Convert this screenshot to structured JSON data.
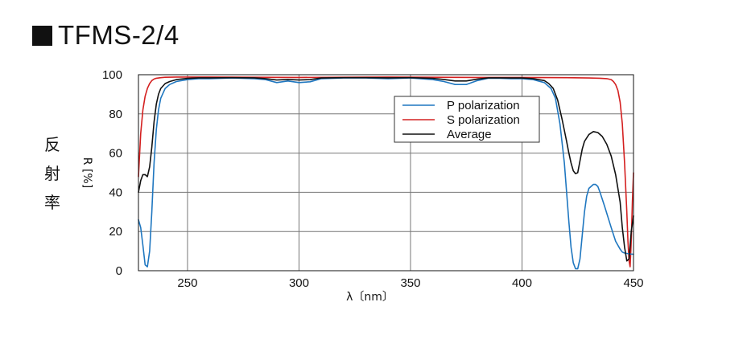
{
  "page": {
    "title": "TFMS-2/4",
    "side_label": [
      "反",
      "射",
      "率"
    ]
  },
  "chart_data": {
    "type": "line",
    "xlabel": "λ〔nm〕",
    "ylabel": "R [%]",
    "xlim": [
      228,
      450
    ],
    "ylim": [
      0,
      100
    ],
    "xticks": [
      250,
      300,
      350,
      400,
      450
    ],
    "yticks": [
      0,
      20,
      40,
      60,
      80,
      100
    ],
    "grid": true,
    "legend_position": "top-right",
    "series": [
      {
        "name": "P polarization",
        "color": "#1f77c0",
        "x": [
          228,
          229,
          230,
          231,
          232,
          233,
          234,
          235,
          236,
          237,
          238,
          240,
          242,
          245,
          250,
          255,
          260,
          270,
          280,
          285,
          290,
          295,
          300,
          305,
          310,
          320,
          330,
          340,
          350,
          360,
          365,
          370,
          375,
          380,
          385,
          390,
          395,
          400,
          405,
          410,
          413,
          415,
          417,
          419,
          420,
          421,
          422,
          423,
          424,
          425,
          426,
          427,
          428,
          429,
          430,
          432,
          433,
          434,
          435,
          437,
          440,
          442,
          444,
          445,
          446,
          447,
          448,
          449,
          450
        ],
        "y": [
          26,
          22,
          13,
          3,
          2,
          10,
          30,
          55,
          72,
          82,
          88,
          93,
          95,
          96.5,
          97.5,
          98,
          98,
          98.3,
          98,
          97.5,
          96,
          96.8,
          96,
          96.4,
          98,
          98.3,
          98.3,
          98,
          98.3,
          97.5,
          96.5,
          95,
          95,
          97,
          98.2,
          98.2,
          98,
          98,
          97.5,
          96,
          93,
          88,
          75,
          55,
          40,
          25,
          12,
          4,
          1,
          1,
          6,
          18,
          30,
          38,
          42,
          44,
          44,
          43,
          40,
          33,
          22,
          15,
          11,
          9.5,
          9,
          8.8,
          8.6,
          8.5,
          8.4
        ]
      },
      {
        "name": "S polarization",
        "color": "#d42020",
        "x": [
          228,
          229,
          230,
          231,
          232,
          233,
          234,
          235,
          236,
          238,
          240,
          245,
          250,
          260,
          280,
          300,
          320,
          340,
          360,
          380,
          400,
          420,
          430,
          435,
          438,
          440,
          441,
          442,
          443,
          444,
          445,
          446,
          447,
          447.5,
          448,
          448.5,
          449,
          449.5,
          450
        ],
        "y": [
          48,
          70,
          82,
          89,
          93,
          95.5,
          97,
          97.8,
          98.2,
          98.5,
          98.7,
          98.8,
          98.8,
          98.8,
          98.7,
          98.6,
          98.7,
          98.8,
          98.7,
          98.6,
          98.6,
          98.5,
          98.3,
          98.2,
          98,
          97.5,
          96.5,
          95,
          92,
          86,
          75,
          55,
          30,
          15,
          5,
          2,
          15,
          35,
          50
        ]
      },
      {
        "name": "Average",
        "color": "#111111",
        "x": [
          228,
          229,
          230,
          231,
          232,
          233,
          234,
          235,
          236,
          237,
          238,
          240,
          242,
          245,
          250,
          255,
          260,
          270,
          280,
          285,
          290,
          295,
          300,
          305,
          310,
          320,
          330,
          340,
          350,
          360,
          365,
          370,
          375,
          380,
          385,
          390,
          395,
          400,
          405,
          410,
          412,
          414,
          416,
          418,
          420,
          421,
          422,
          423,
          424,
          425,
          426,
          427,
          428,
          430,
          432,
          434,
          436,
          438,
          440,
          442,
          444,
          445,
          446,
          447,
          448,
          449,
          450
        ],
        "y": [
          40,
          46,
          49,
          49,
          48,
          53,
          63,
          76,
          85,
          90,
          93,
          95.5,
          96.5,
          97.5,
          98.1,
          98.4,
          98.4,
          98.5,
          98.4,
          98,
          97.3,
          97.6,
          97.3,
          97.5,
          98.3,
          98.5,
          98.5,
          98.4,
          98.5,
          98.1,
          97.6,
          96.8,
          96.8,
          97.8,
          98.4,
          98.4,
          98.3,
          98.3,
          98,
          97,
          95.5,
          93,
          87,
          77,
          66,
          60,
          55,
          51,
          49.5,
          50,
          56,
          62,
          66,
          69.5,
          71,
          70.5,
          68.5,
          64.5,
          58.5,
          49,
          35,
          22,
          12,
          5,
          6,
          20,
          28
        ]
      }
    ]
  }
}
